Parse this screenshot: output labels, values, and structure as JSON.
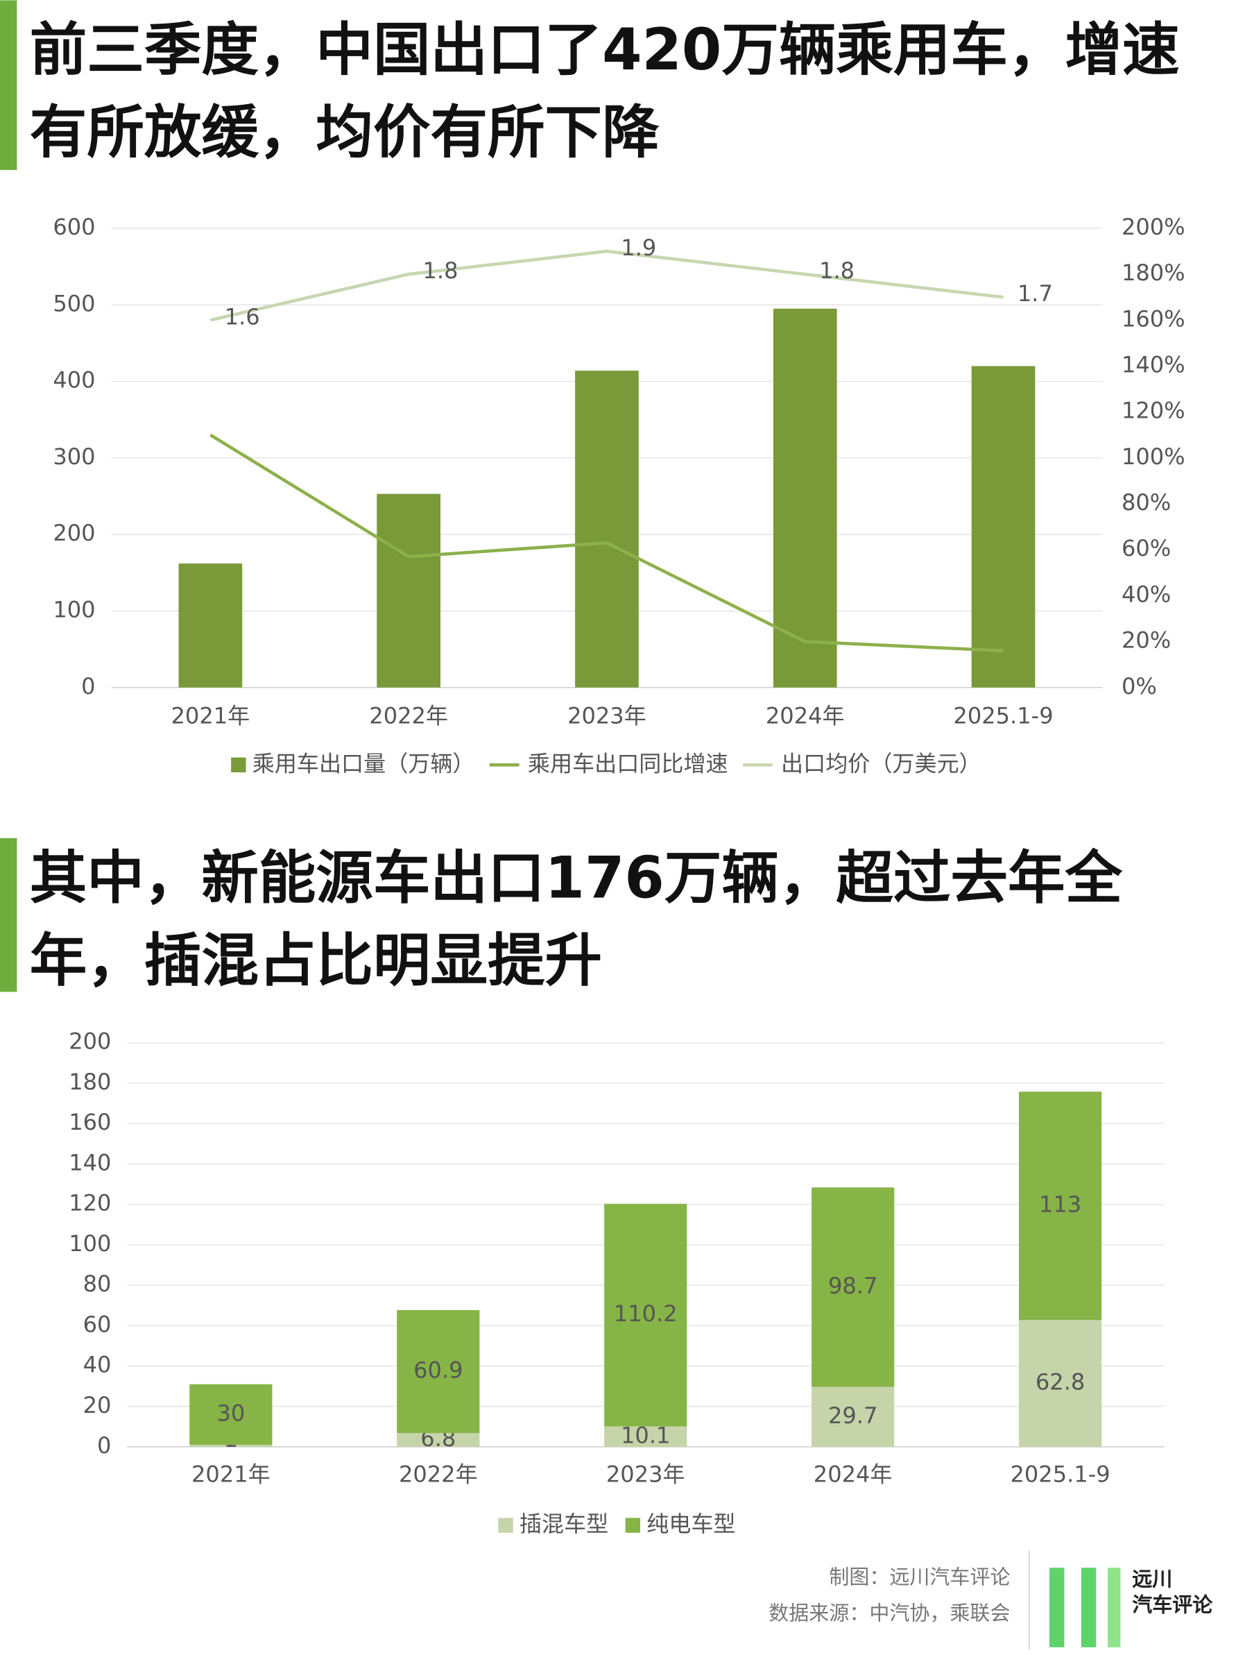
{
  "chart_data": [
    {
      "type": "combo",
      "title": "前三季度，中国出口了420万辆乘用车，增速有所放缓，均价有所下降",
      "categories": [
        "2021年",
        "2022年",
        "2023年",
        "2024年",
        "2025.1-9"
      ],
      "series": [
        {
          "name": "乘用车出口量（万辆）",
          "type": "bar",
          "color": "#7a9a3a",
          "values": [
            162,
            253,
            414,
            495,
            420
          ]
        },
        {
          "name": "乘用车出口同比增速",
          "type": "line",
          "axis": "y2",
          "color": "#8db04a",
          "values": [
            1.1,
            0.57,
            0.63,
            0.2,
            0.16
          ]
        },
        {
          "name": "出口均价（万美元）",
          "type": "line",
          "axis": "y2",
          "color": "#c7d6b0",
          "values": [
            1.6,
            1.8,
            1.9,
            1.8,
            1.7
          ],
          "show_labels": true
        }
      ],
      "ylim": [
        0,
        600
      ],
      "yticks": [
        0,
        100,
        200,
        300,
        400,
        500,
        600
      ],
      "y2lim": [
        0,
        2
      ],
      "y2ticks": [
        {
          "value": 0,
          "label": "0%"
        },
        {
          "value": 0.2,
          "label": "20%"
        },
        {
          "value": 0.4,
          "label": "40%"
        },
        {
          "value": 0.6,
          "label": "60%"
        },
        {
          "value": 0.8,
          "label": "80%"
        },
        {
          "value": 1,
          "label": "100%"
        },
        {
          "value": 1.2,
          "label": "120%"
        },
        {
          "value": 1.4,
          "label": "140%"
        },
        {
          "value": 1.6,
          "label": "160%"
        },
        {
          "value": 1.8,
          "label": "180%"
        },
        {
          "value": 2,
          "label": "200%"
        }
      ],
      "grid": true
    },
    {
      "type": "stacked_bar",
      "title": "其中，新能源车出口176万辆，超过去年全年，插混占比明显提升",
      "categories": [
        "2021年",
        "2022年",
        "2023年",
        "2024年",
        "2025.1-9"
      ],
      "series": [
        {
          "name": "插混车型",
          "color": "#c6d4a9",
          "values": [
            1,
            6.8,
            10.1,
            29.7,
            62.8
          ]
        },
        {
          "name": "纯电车型",
          "color": "#86b446",
          "values": [
            30,
            60.9,
            110.2,
            98.7,
            113
          ]
        }
      ],
      "ylim": [
        0,
        200
      ],
      "yticks": [
        0,
        20,
        40,
        60,
        80,
        100,
        120,
        140,
        160,
        180,
        200
      ],
      "grid": true
    }
  ],
  "footer": {
    "maker": "制图：远川汽车评论",
    "source": "数据来源：中汽协，乘联会",
    "logo_line1": "远川",
    "logo_line2": "汽车评论"
  }
}
